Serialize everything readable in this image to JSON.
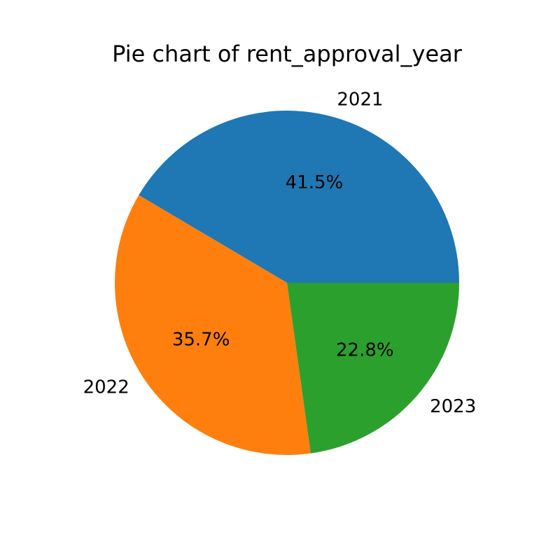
{
  "chart_data": {
    "type": "pie",
    "title": "Pie chart of rent_approval_year",
    "categories": [
      "2021",
      "2022",
      "2023"
    ],
    "values": [
      41.5,
      35.7,
      22.8
    ],
    "value_labels": [
      "41.5%",
      "35.7%",
      "22.8%"
    ],
    "colors": [
      "#1f77b4",
      "#ff7f0e",
      "#2ca02c"
    ],
    "start_angle_deg": 0,
    "direction": "counterclockwise",
    "legend": "none"
  }
}
